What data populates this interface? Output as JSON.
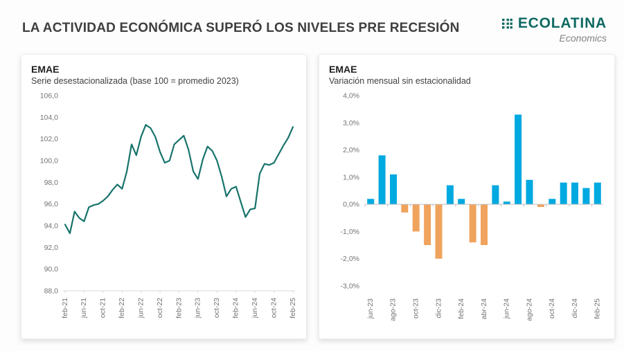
{
  "header": {
    "title": "LA ACTIVIDAD ECONÓMICA SUPERÓ LOS NIVELES PRE RECESIÓN",
    "logo_text": "ECOLATINA",
    "logo_tagline": "Economics",
    "logo_color": "#0e6a63"
  },
  "charts": [
    {
      "title": "EMAE",
      "subtitle": "Serie desestacionalizada (base 100 = promedio 2023)"
    },
    {
      "title": "EMAE",
      "subtitle": "Variación mensual sin estacionalidad"
    }
  ],
  "colors": {
    "line": "#17736c",
    "bar_positive": "#00a9e0",
    "bar_negative": "#f0a35d",
    "axis_text": "#737373",
    "axis_line": "#d9d9d9"
  },
  "chart_data": [
    {
      "type": "line",
      "title": "EMAE",
      "subtitle": "Serie desestacionalizada (base 100 = promedio 2023)",
      "categories": [
        "feb-21",
        "mar-21",
        "abr-21",
        "may-21",
        "jun-21",
        "jul-21",
        "ago-21",
        "sep-21",
        "oct-21",
        "nov-21",
        "dic-21",
        "ene-22",
        "feb-22",
        "mar-22",
        "abr-22",
        "may-22",
        "jun-22",
        "jul-22",
        "ago-22",
        "sep-22",
        "oct-22",
        "nov-22",
        "dic-22",
        "ene-23",
        "feb-23",
        "mar-23",
        "abr-23",
        "may-23",
        "jun-23",
        "jul-23",
        "ago-23",
        "sep-23",
        "oct-23",
        "nov-23",
        "dic-23",
        "ene-24",
        "feb-24",
        "mar-24",
        "abr-24",
        "may-24",
        "jun-24",
        "jul-24",
        "ago-24",
        "sep-24",
        "oct-24",
        "nov-24",
        "dic-24",
        "ene-25",
        "feb-25"
      ],
      "values": [
        94.1,
        93.3,
        95.3,
        94.7,
        94.4,
        95.7,
        95.9,
        96.0,
        96.3,
        96.7,
        97.3,
        97.8,
        97.4,
        99.0,
        101.5,
        100.5,
        102.2,
        103.3,
        103.0,
        102.2,
        100.8,
        99.8,
        100.0,
        101.5,
        101.9,
        102.3,
        101.0,
        99.0,
        98.3,
        100.1,
        101.3,
        100.9,
        100.0,
        98.5,
        96.7,
        97.4,
        97.6,
        96.2,
        94.8,
        95.5,
        95.6,
        98.8,
        99.7,
        99.6,
        99.8,
        100.6,
        101.4,
        102.1,
        103.1
      ],
      "ylim": [
        88,
        106
      ],
      "ytick_step": 2,
      "y_decimals": 1,
      "x_tick_every": 4,
      "grid": false,
      "legend": "none",
      "line_color": "#17736c"
    },
    {
      "type": "bar",
      "title": "EMAE",
      "subtitle": "Variación mensual sin estacionalidad",
      "categories": [
        "jun-23",
        "jul-23",
        "ago-23",
        "sep-23",
        "oct-23",
        "nov-23",
        "dic-23",
        "ene-24",
        "feb-24",
        "mar-24",
        "abr-24",
        "may-24",
        "jun-24",
        "jul-24",
        "ago-24",
        "sep-24",
        "oct-24",
        "nov-24",
        "dic-24",
        "ene-25",
        "feb-25"
      ],
      "values": [
        0.2,
        1.8,
        1.1,
        -0.3,
        -1.0,
        -1.5,
        -2.0,
        0.7,
        0.2,
        -1.4,
        -1.5,
        0.7,
        0.1,
        3.3,
        0.9,
        -0.1,
        0.2,
        0.8,
        0.8,
        0.6,
        0.8
      ],
      "ylim": [
        -3,
        4
      ],
      "ytick_step": 1,
      "y_decimals": 1,
      "y_suffix": "%",
      "x_tick_every": 2,
      "grid": false,
      "legend": "none",
      "positive_color": "#00a9e0",
      "negative_color": "#f0a35d"
    }
  ]
}
